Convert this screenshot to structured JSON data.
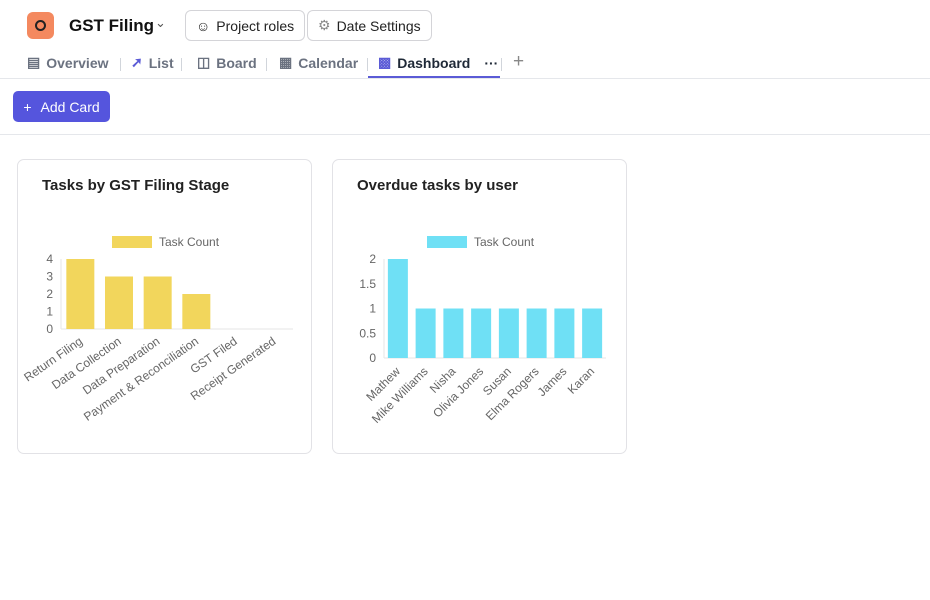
{
  "header": {
    "title": "GST Filing",
    "project_roles": "Project roles",
    "date_settings": "Date Settings"
  },
  "tabs": [
    {
      "label": "Overview",
      "icon": "clipboard-icon"
    },
    {
      "label": "List",
      "icon": "pin-icon"
    },
    {
      "label": "Board",
      "icon": "board-icon"
    },
    {
      "label": "Calendar",
      "icon": "calendar-icon"
    },
    {
      "label": "Dashboard",
      "icon": "chart-icon",
      "active": true
    }
  ],
  "toolbar": {
    "add_card": "Add Card"
  },
  "chart_data": [
    {
      "type": "bar",
      "title": "Tasks by GST Filing Stage",
      "legend": "Task Count",
      "legend_position": "top",
      "color": "#f2d65c",
      "categories": [
        "Return Filing",
        "Data Collection",
        "Data Preparation",
        "Payment & Reconciliation",
        "GST Filed",
        "Receipt Generated"
      ],
      "values": [
        4,
        3,
        3,
        2,
        0,
        0
      ],
      "ylim": [
        0,
        4
      ],
      "yticks": [
        "0",
        "1",
        "2",
        "3",
        "4"
      ]
    },
    {
      "type": "bar",
      "title": "Overdue tasks by user",
      "legend": "Task Count",
      "legend_position": "top",
      "color": "#6fe0f5",
      "categories": [
        "Mathew",
        "Mike Williams",
        "Nisha",
        "Olivia Jones",
        "Susan",
        "Elma Rogers",
        "James",
        "Karan"
      ],
      "values": [
        2,
        1,
        1,
        1,
        1,
        1,
        1,
        1
      ],
      "ylim": [
        0,
        2
      ],
      "yticks": [
        "0",
        "0.5",
        "1",
        "1.5",
        "2"
      ]
    }
  ]
}
